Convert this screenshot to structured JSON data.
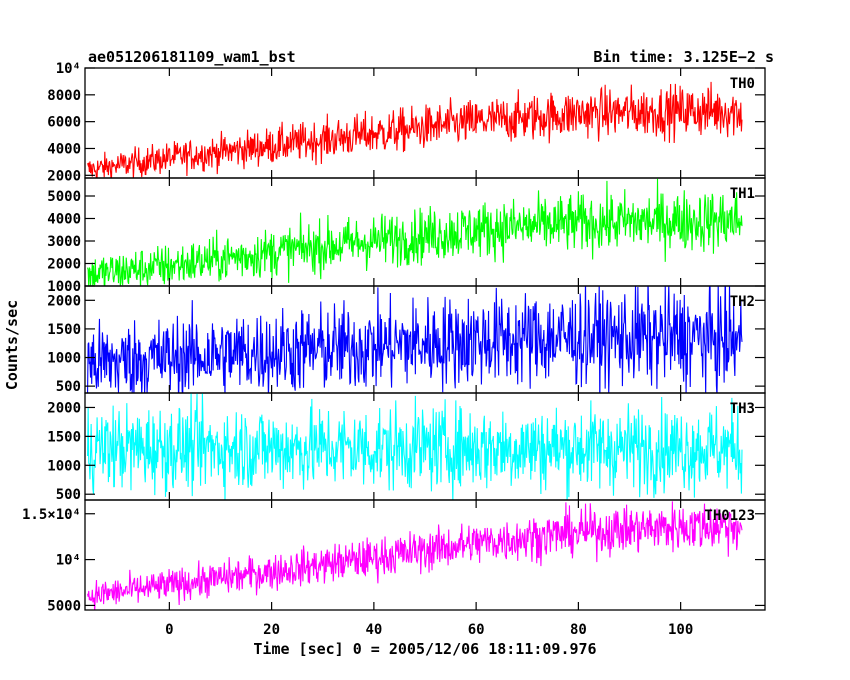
{
  "header": {
    "title": "ae051206181109_wam1_bst",
    "bin_time": "Bin time: 3.125E−2 s"
  },
  "chart_data": {
    "type": "line",
    "xlabel": "Time [sec] 0 = 2005/12/06 18:11:09.976",
    "ylabel": "Counts/sec",
    "xlim": [
      -16.5,
      116.5
    ],
    "x_ticks": [
      0,
      20,
      40,
      60,
      80,
      100
    ],
    "x_tick_labels": [
      "0",
      "20",
      "40",
      "60",
      "80",
      "100"
    ],
    "x_range": [
      -16,
      112
    ],
    "panels": [
      {
        "name": "TH0",
        "color": "#ff0000",
        "ylim": [
          1800,
          10000
        ],
        "y_ticks": [
          2000,
          4000,
          6000,
          8000,
          10000
        ],
        "y_tick_labels": [
          "2000",
          "4000",
          "6000",
          "8000",
          "10⁴"
        ],
        "trend": [
          [
            -16,
            2400
          ],
          [
            0,
            3300
          ],
          [
            20,
            4200
          ],
          [
            40,
            5100
          ],
          [
            60,
            6000
          ],
          [
            80,
            6600
          ],
          [
            100,
            6800
          ],
          [
            112,
            6800
          ]
        ],
        "spread": [
          [
            -16,
            500
          ],
          [
            40,
            800
          ],
          [
            112,
            1000
          ]
        ]
      },
      {
        "name": "TH1",
        "color": "#00ff00",
        "ylim": [
          1000,
          5800
        ],
        "y_ticks": [
          1000,
          2000,
          3000,
          4000,
          5000
        ],
        "y_tick_labels": [
          "1000",
          "2000",
          "3000",
          "4000",
          "5000"
        ],
        "trend": [
          [
            -16,
            1500
          ],
          [
            0,
            1900
          ],
          [
            20,
            2500
          ],
          [
            40,
            3000
          ],
          [
            60,
            3500
          ],
          [
            80,
            3800
          ],
          [
            100,
            3900
          ],
          [
            112,
            3900
          ]
        ],
        "spread": [
          [
            -16,
            450
          ],
          [
            40,
            600
          ],
          [
            112,
            700
          ]
        ]
      },
      {
        "name": "TH2",
        "color": "#0000ff",
        "ylim": [
          380,
          2250
        ],
        "y_ticks": [
          500,
          1000,
          1500,
          2000
        ],
        "y_tick_labels": [
          "500",
          "1000",
          "1500",
          "2000"
        ],
        "trend": [
          [
            -16,
            900
          ],
          [
            0,
            1000
          ],
          [
            20,
            1100
          ],
          [
            40,
            1200
          ],
          [
            60,
            1300
          ],
          [
            80,
            1350
          ],
          [
            100,
            1350
          ],
          [
            112,
            1300
          ]
        ],
        "spread": [
          [
            -16,
            350
          ],
          [
            112,
            450
          ]
        ]
      },
      {
        "name": "TH3",
        "color": "#00ffff",
        "ylim": [
          400,
          2250
        ],
        "y_ticks": [
          500,
          1000,
          1500,
          2000
        ],
        "y_tick_labels": [
          "500",
          "1000",
          "1500",
          "2000"
        ],
        "trend": [
          [
            -16,
            1300
          ],
          [
            112,
            1300
          ]
        ],
        "spread": [
          [
            -16,
            370
          ],
          [
            112,
            370
          ]
        ]
      },
      {
        "name": "TH0123",
        "color": "#ff00ff",
        "ylim": [
          4500,
          16500
        ],
        "y_ticks": [
          5000,
          10000,
          15000
        ],
        "y_tick_labels": [
          "5000",
          "10⁴",
          "1.5×10⁴"
        ],
        "trend": [
          [
            -16,
            6000
          ],
          [
            0,
            7200
          ],
          [
            20,
            8700
          ],
          [
            40,
            10200
          ],
          [
            60,
            11800
          ],
          [
            80,
            13000
          ],
          [
            100,
            13600
          ],
          [
            112,
            13700
          ]
        ],
        "spread": [
          [
            -16,
            800
          ],
          [
            40,
            1100
          ],
          [
            112,
            1400
          ]
        ]
      }
    ]
  }
}
